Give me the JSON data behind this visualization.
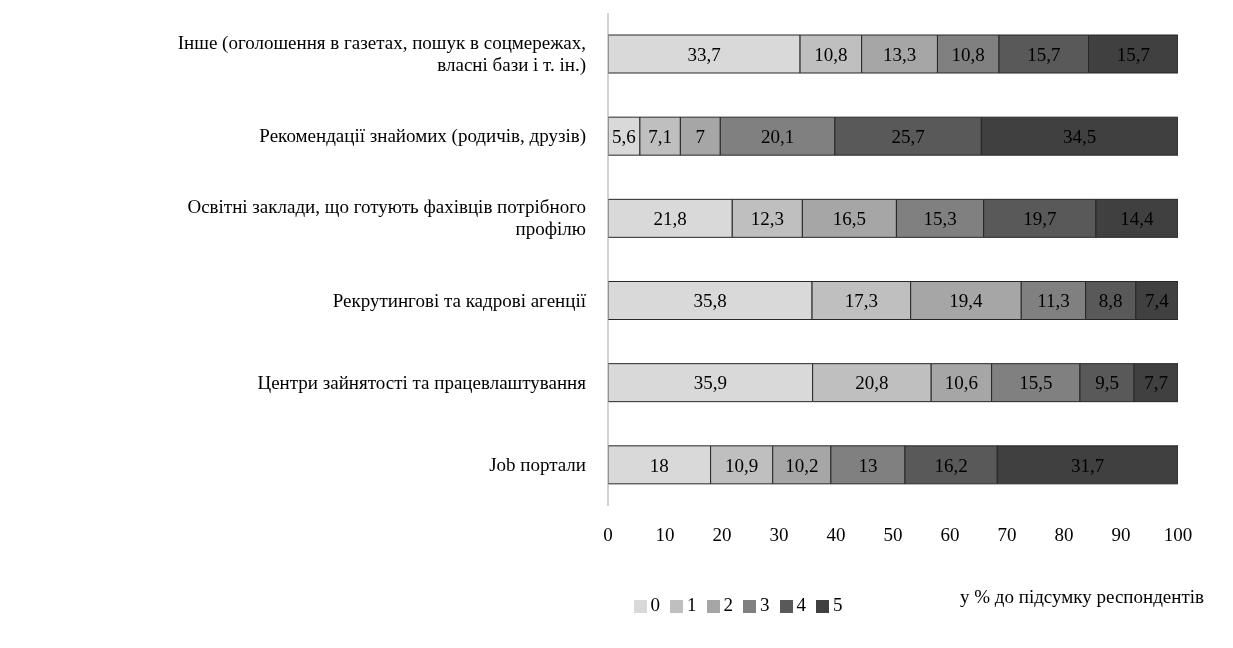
{
  "chart_data": {
    "type": "bar",
    "orientation": "horizontal",
    "stacked": true,
    "xlabel": "у % до підсумку респондентів",
    "categories": [
      "Інше (оголошення в газетах, пошук в соцмережах, власні бази і т. ін.)",
      "Рекомендації знайомих (родичів, друзів)",
      "Освітні заклади, що готують фахівців потрібного профілю",
      "Рекрутингові та кадрові агенції",
      "Центри зайнятості та працевлаштування",
      "Job портали"
    ],
    "series": [
      {
        "name": "0",
        "color": "#d9d9d9",
        "values": [
          33.7,
          5.6,
          21.8,
          35.8,
          35.9,
          18
        ],
        "value_labels": [
          "33,7",
          "5,6",
          "21,8",
          "35,8",
          "35,9",
          "18"
        ]
      },
      {
        "name": "1",
        "color": "#bfbfbf",
        "values": [
          10.8,
          7.1,
          12.3,
          17.3,
          20.8,
          10.9
        ],
        "value_labels": [
          "10,8",
          "7,1",
          "12,3",
          "17,3",
          "20,8",
          "10,9"
        ]
      },
      {
        "name": "2",
        "color": "#a6a6a6",
        "values": [
          13.3,
          7,
          16.5,
          19.4,
          10.6,
          10.2
        ],
        "value_labels": [
          "13,3",
          "7",
          "16,5",
          "19,4",
          "10,6",
          "10,2"
        ]
      },
      {
        "name": "3",
        "color": "#808080",
        "values": [
          10.8,
          20.1,
          15.3,
          11.3,
          15.5,
          13
        ],
        "value_labels": [
          "10,8",
          "20,1",
          "15,3",
          "11,3",
          "15,5",
          "13"
        ]
      },
      {
        "name": "4",
        "color": "#595959",
        "values": [
          15.7,
          25.7,
          19.7,
          8.8,
          9.5,
          16.2
        ],
        "value_labels": [
          "15,7",
          "25,7",
          "19,7",
          "8,8",
          "9,5",
          "16,2"
        ]
      },
      {
        "name": "5",
        "color": "#404040",
        "values": [
          15.7,
          34.5,
          14.4,
          7.4,
          7.7,
          31.7
        ],
        "value_labels": [
          "15,7",
          "34,5",
          "14,4",
          "7,4",
          "7,7",
          "31,7"
        ]
      }
    ],
    "xlim": [
      0,
      100
    ],
    "xticks": [
      0,
      10,
      20,
      30,
      40,
      50,
      60,
      70,
      80,
      90,
      100
    ],
    "grid": false,
    "legend": "bottom"
  }
}
